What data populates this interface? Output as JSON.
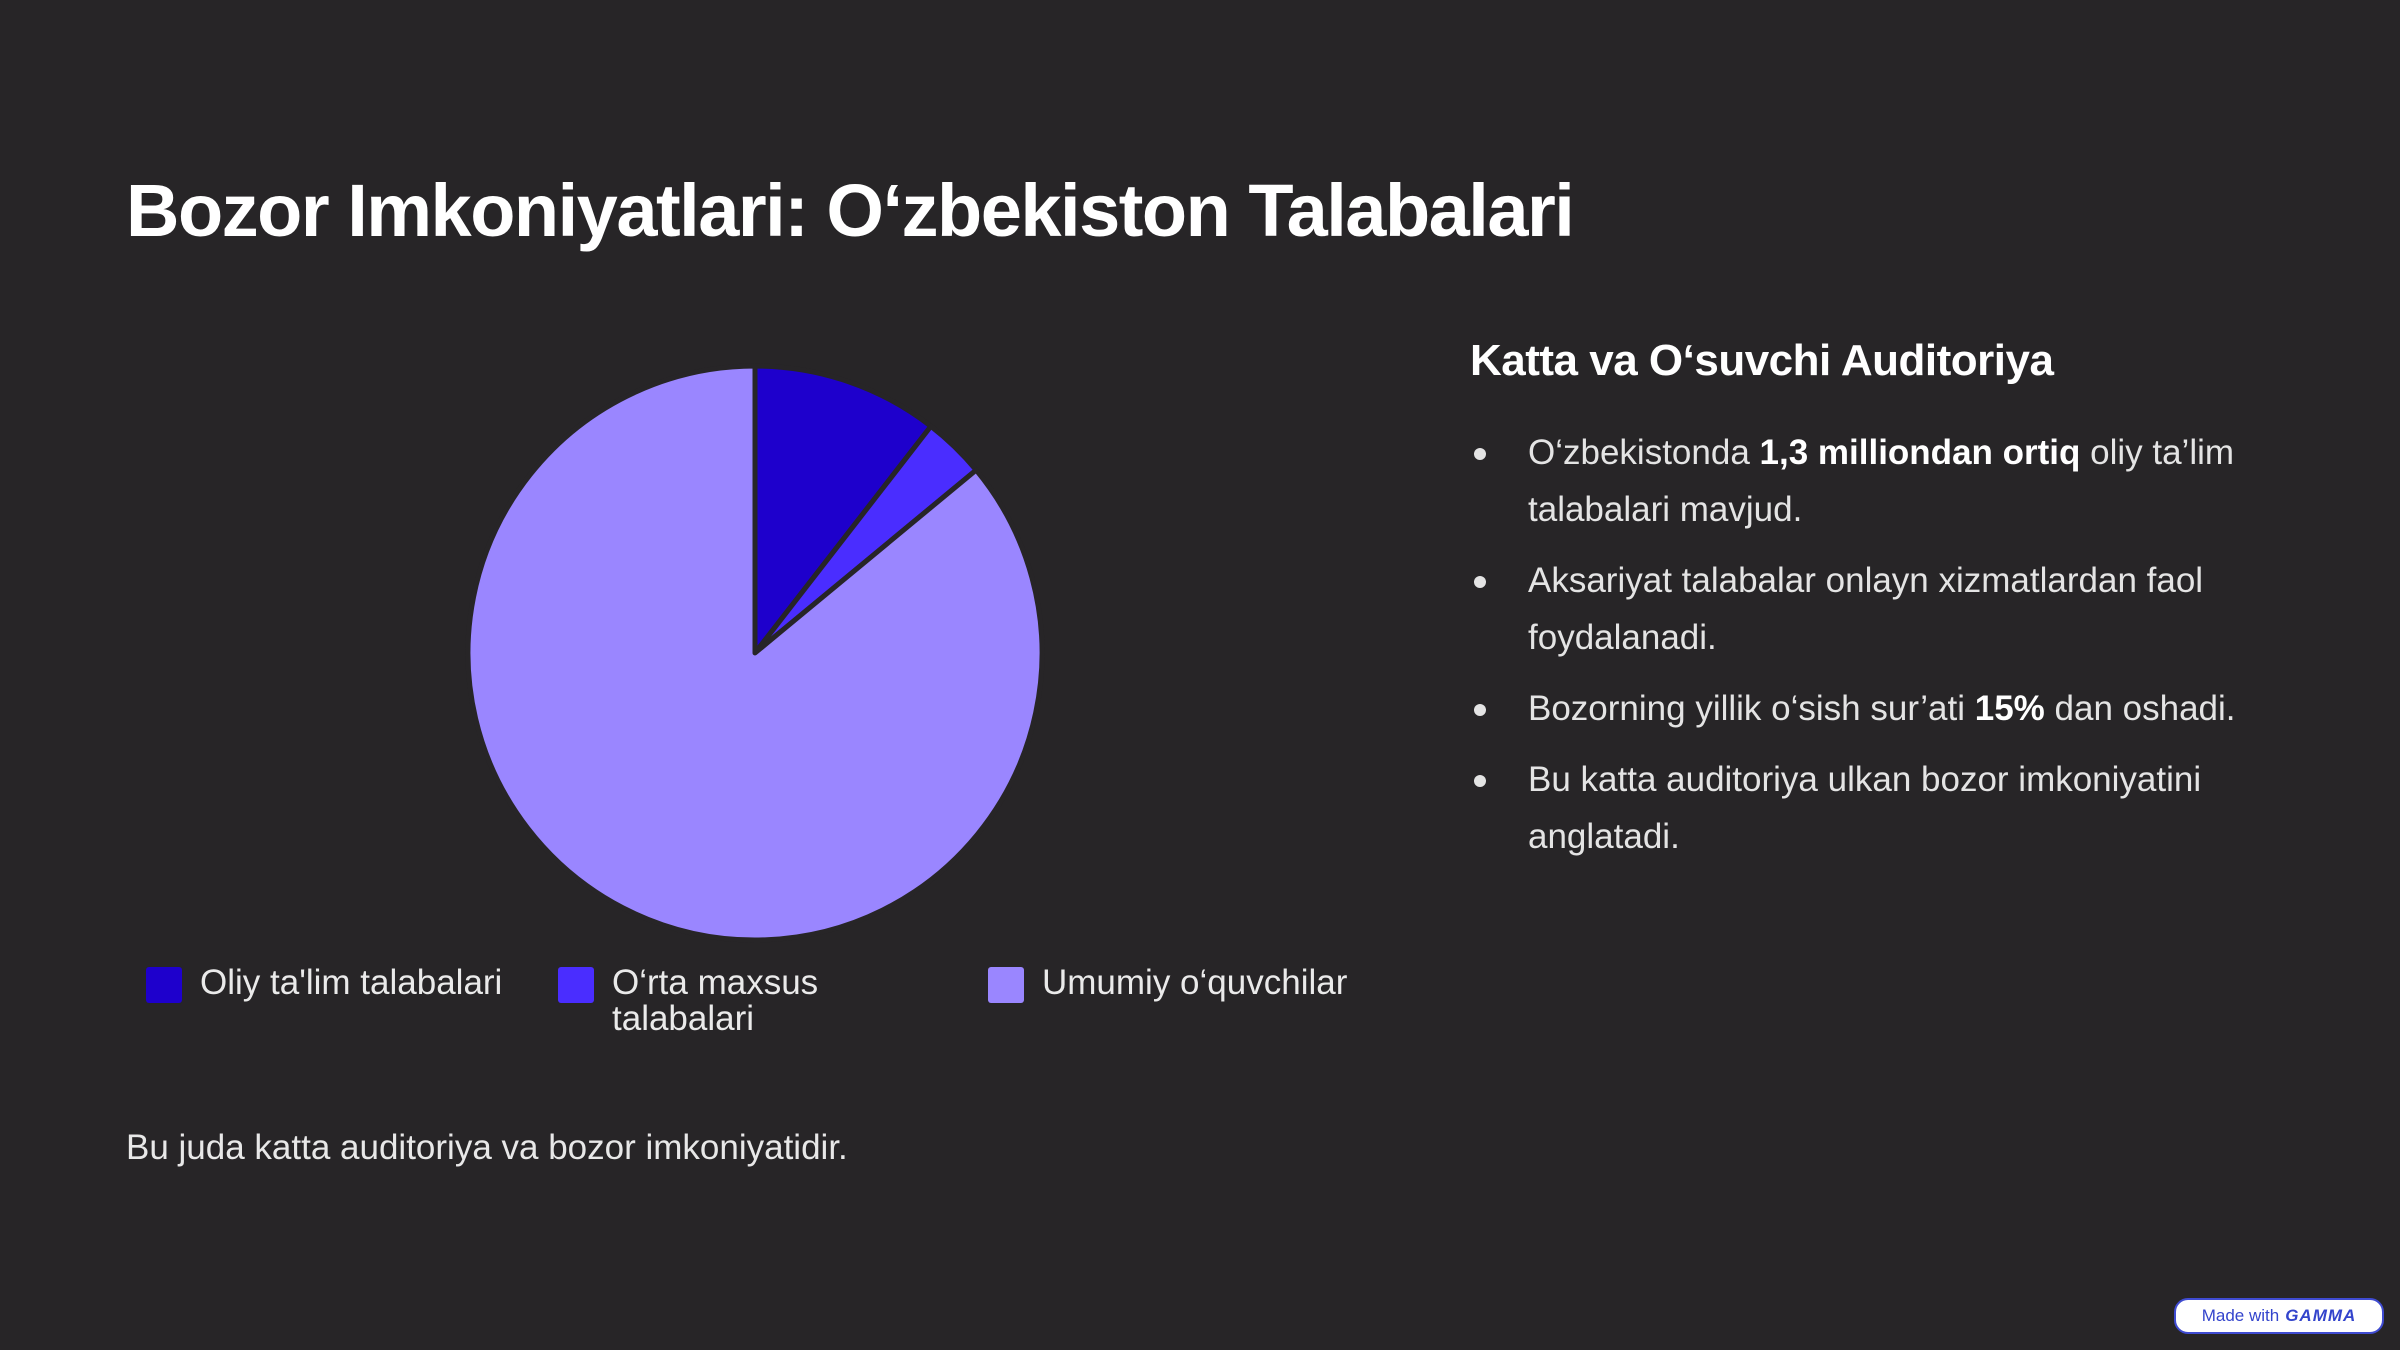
{
  "title": "Bozor Imkoniyatlari: O‘zbekiston Talabalari",
  "chart_data": {
    "type": "pie",
    "title": "",
    "slices": [
      {
        "label": "Oliy ta'lim talabalari",
        "value": 10.5,
        "color": "#1e00cc"
      },
      {
        "label": "O‘rta maxsus talabalari",
        "value": 3.5,
        "color": "#4a2dff"
      },
      {
        "label": "Umumiy o‘quvchilar",
        "value": 86.0,
        "color": "#9a86ff"
      }
    ],
    "start_angle_deg": 0,
    "direction": "clockwise",
    "legend_position": "bottom"
  },
  "footnote": "Bu juda katta auditoriya va bozor imkoniyatidir.",
  "side": {
    "heading": "Katta va O‘suvchi Auditoriya",
    "bullets": [
      {
        "before": "O‘zbekistonda ",
        "bold": "1,3 milliondan ortiq",
        "after": " oliy ta’lim talabalari mavjud."
      },
      {
        "before": "Aksariyat talabalar onlayn xizmatlardan faol foydalanadi.",
        "bold": "",
        "after": ""
      },
      {
        "before": "Bozorning yillik o‘sish sur’ati ",
        "bold": "15%",
        "after": " dan oshadi."
      },
      {
        "before": "Bu katta auditoriya ulkan bozor imkoniyatini anglatadi.",
        "bold": "",
        "after": ""
      }
    ]
  },
  "badge": {
    "prefix": "Made with",
    "brand": "GAMMA"
  },
  "colors": {
    "background": "#272527",
    "accent": "#1e00cc"
  }
}
